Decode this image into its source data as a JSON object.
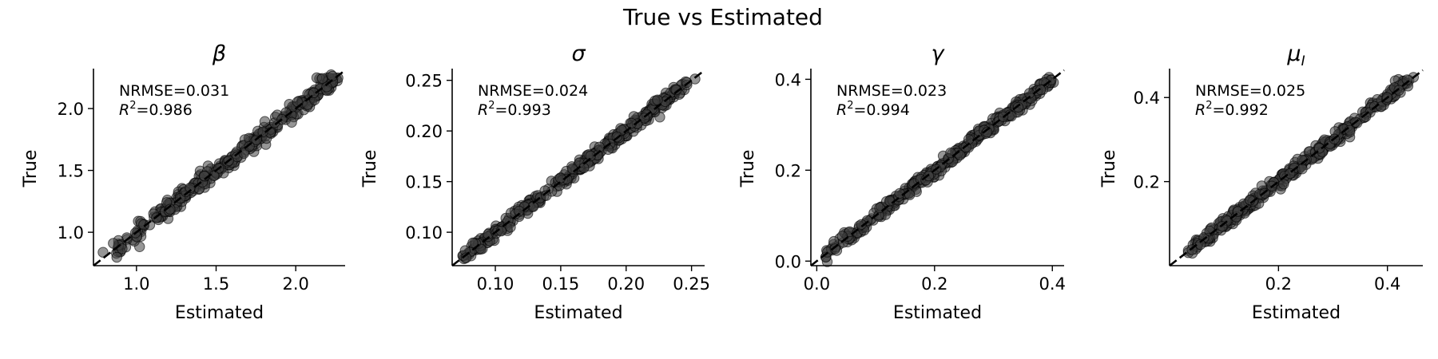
{
  "figure": {
    "title": "True vs Estimated"
  },
  "chart_data": [
    {
      "type": "scatter",
      "title": "β",
      "xlabel": "Estimated",
      "ylabel": "True",
      "xlim": [
        0.73,
        2.31
      ],
      "ylim": [
        0.73,
        2.31
      ],
      "xticks": [
        1.0,
        1.5,
        2.0
      ],
      "yticks": [
        1.0,
        1.5,
        2.0
      ],
      "tick_labels": [
        "1.0",
        "1.5",
        "2.0"
      ],
      "range": [
        0.8,
        2.25
      ],
      "nrmse_text": "NRMSE=0.031",
      "r2_text": "=0.986",
      "r2_label": "R",
      "r2_sup": "2",
      "identity_line": true,
      "marker_color": "#404040",
      "n_points": 340,
      "spread": 0.025,
      "seed": 11
    },
    {
      "type": "scatter",
      "title": "σ",
      "xlabel": "Estimated",
      "ylabel": "True",
      "xlim": [
        0.067,
        0.26
      ],
      "ylim": [
        0.067,
        0.26
      ],
      "xticks": [
        0.1,
        0.15,
        0.2,
        0.25
      ],
      "yticks": [
        0.1,
        0.15,
        0.2,
        0.25
      ],
      "tick_labels": [
        "0.10",
        "0.15",
        "0.20",
        "0.25"
      ],
      "range": [
        0.075,
        0.25
      ],
      "nrmse_text": "NRMSE=0.024",
      "r2_text": "=0.993",
      "r2_label": "R",
      "r2_sup": "2",
      "identity_line": true,
      "marker_color": "#404040",
      "n_points": 340,
      "spread": 0.0025,
      "seed": 23
    },
    {
      "type": "scatter",
      "title": "γ",
      "xlabel": "Estimated",
      "ylabel": "True",
      "xlim": [
        -0.01,
        0.42
      ],
      "ylim": [
        -0.01,
        0.42
      ],
      "xticks": [
        0.0,
        0.2,
        0.4
      ],
      "yticks": [
        0.0,
        0.2,
        0.4
      ],
      "tick_labels": [
        "0.0",
        "0.2",
        "0.4"
      ],
      "range": [
        0.01,
        0.4
      ],
      "nrmse_text": "NRMSE=0.023",
      "r2_text": "=0.994",
      "r2_label": "R",
      "r2_sup": "2",
      "identity_line": true,
      "marker_color": "#404040",
      "n_points": 340,
      "spread": 0.005,
      "seed": 37
    },
    {
      "type": "scatter",
      "title": "μ",
      "title_sub": "I",
      "xlabel": "Estimated",
      "ylabel": "True",
      "xlim": [
        0.0,
        0.465
      ],
      "ylim": [
        0.0,
        0.465
      ],
      "xticks": [
        0.2,
        0.4
      ],
      "yticks": [
        0.2,
        0.4
      ],
      "tick_labels": [
        "0.2",
        "0.4"
      ],
      "range": [
        0.02,
        0.44
      ],
      "nrmse_text": "NRMSE=0.025",
      "r2_text": "=0.992",
      "r2_label": "R",
      "r2_sup": "2",
      "identity_line": true,
      "marker_color": "#404040",
      "n_points": 340,
      "spread": 0.006,
      "seed": 53
    }
  ]
}
